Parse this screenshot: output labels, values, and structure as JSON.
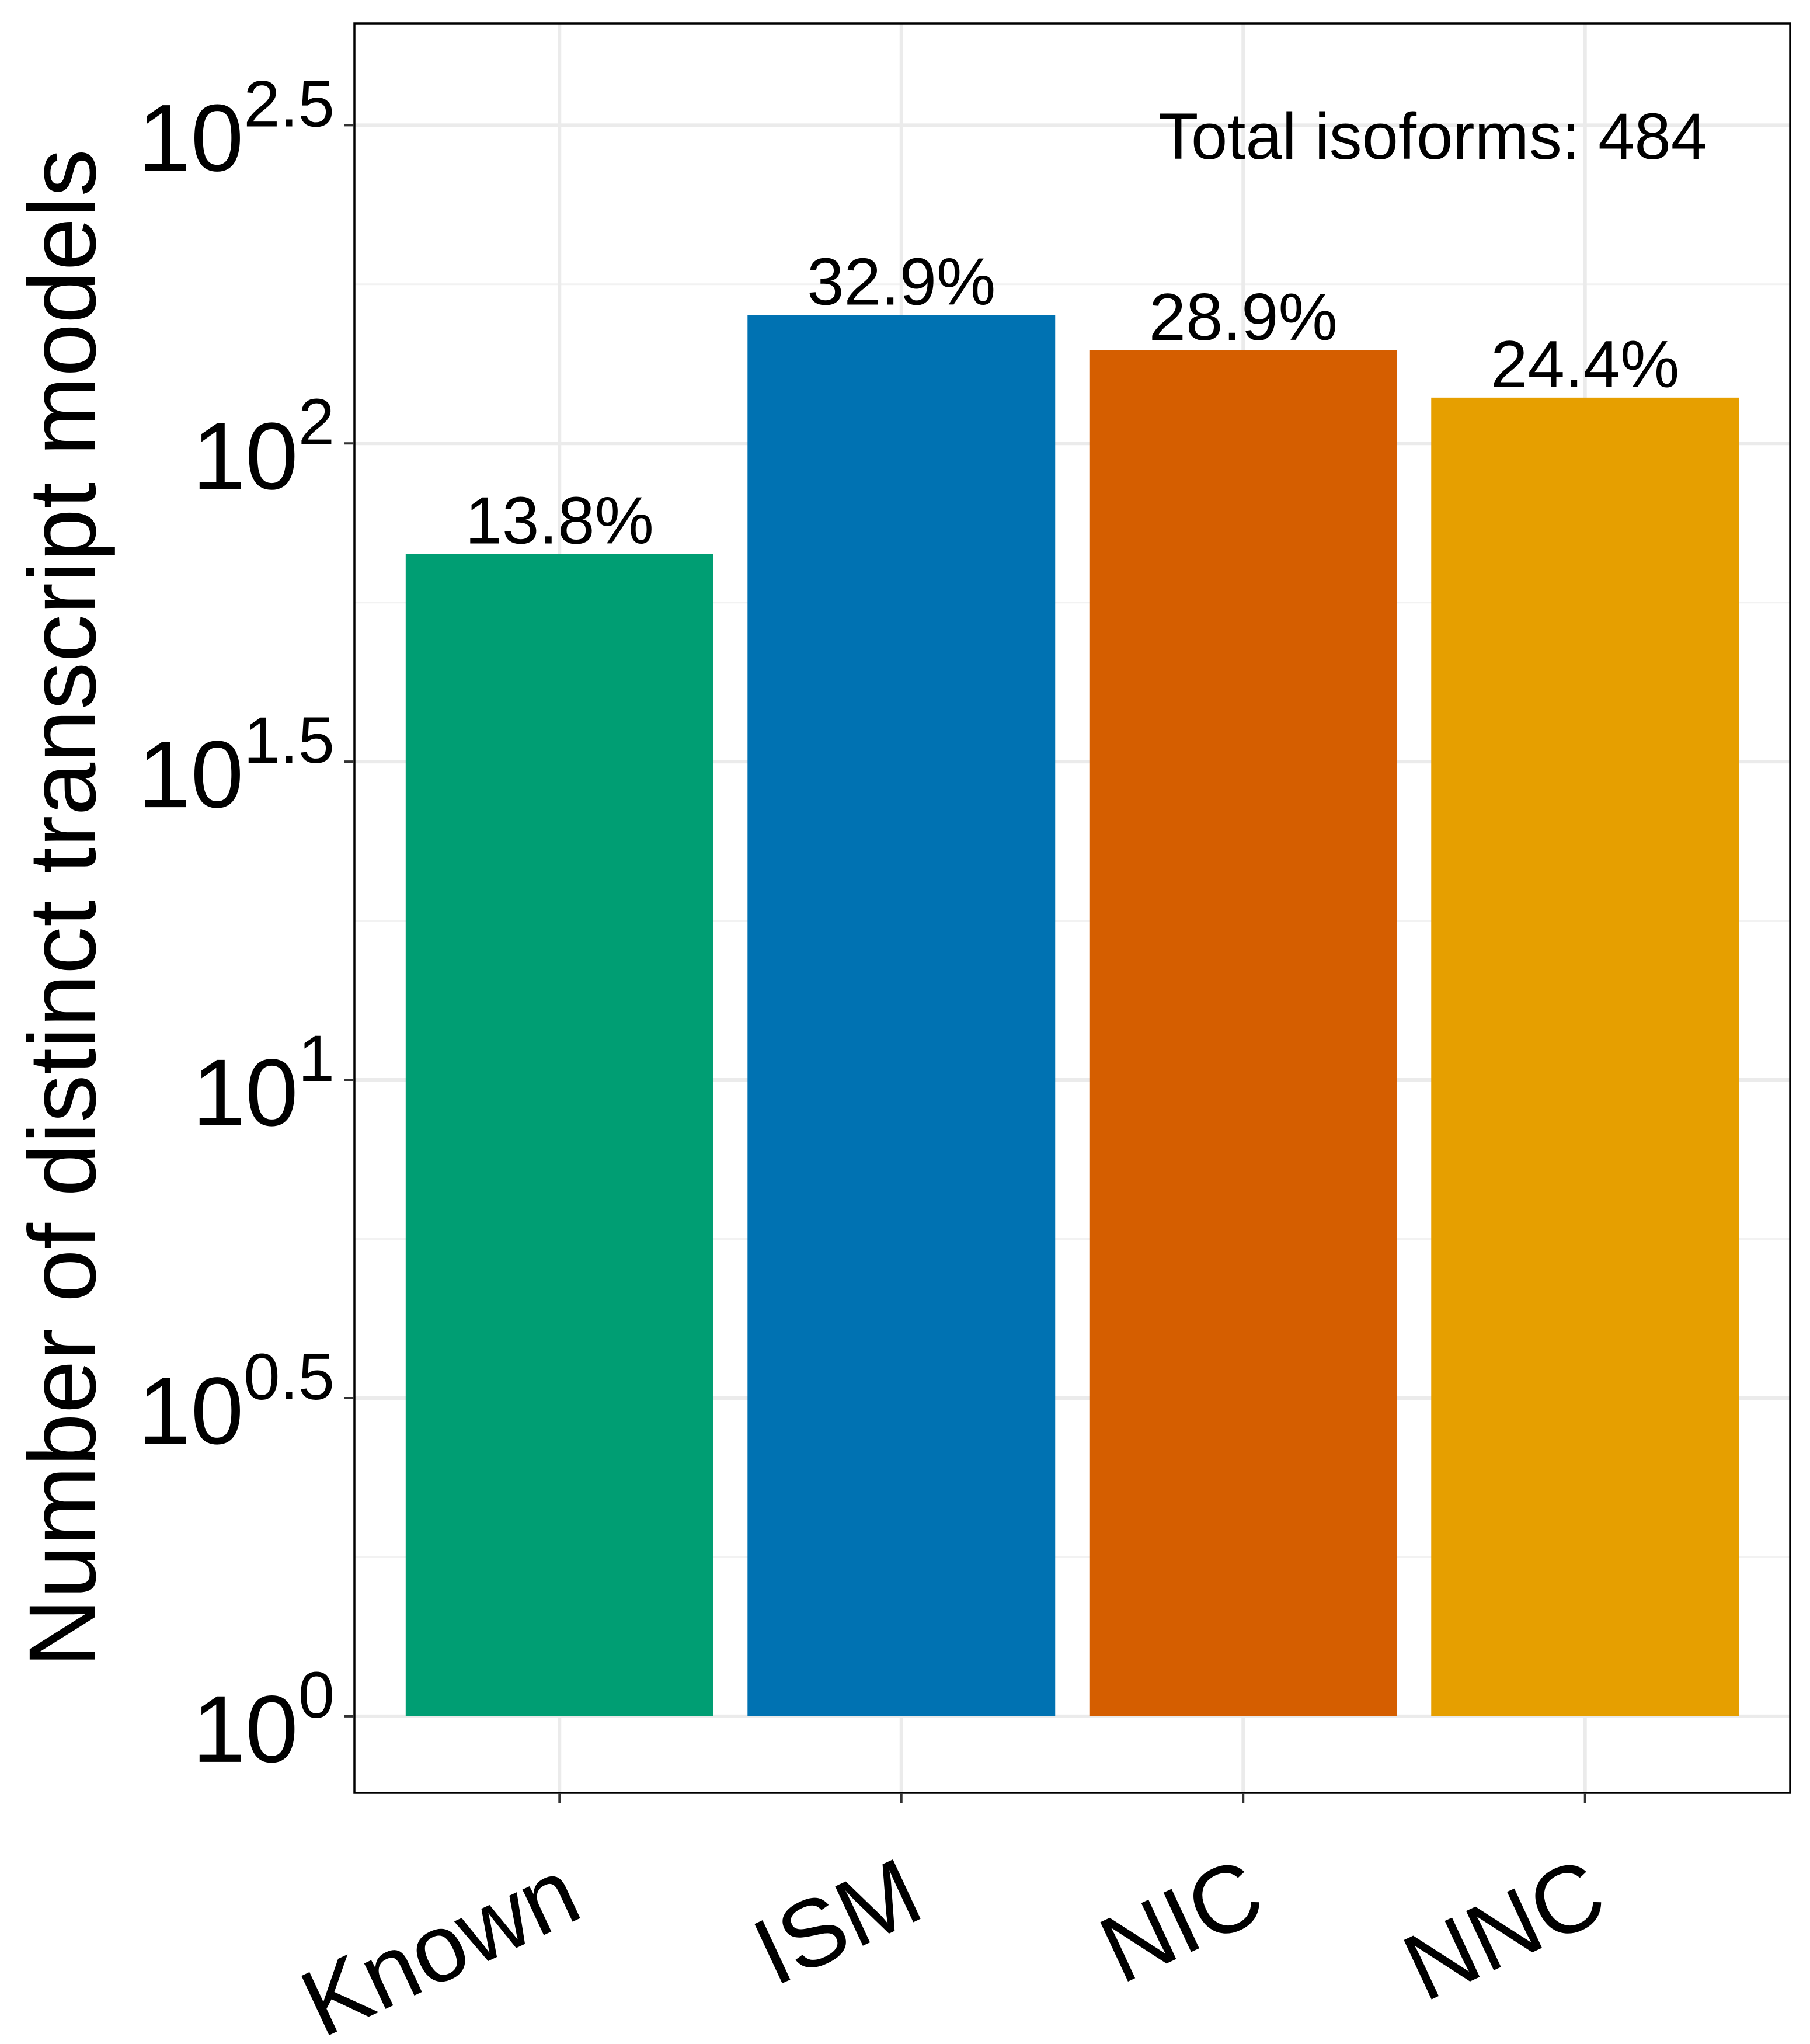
{
  "chart_data": {
    "type": "bar",
    "y_scale": "log10",
    "categories": [
      "Known",
      "ISM",
      "NIC",
      "NNC"
    ],
    "values": [
      67,
      159,
      140,
      118
    ],
    "bar_labels": [
      "13.8%",
      "32.9%",
      "28.9%",
      "24.4%"
    ],
    "colors": [
      "#009E73",
      "#0072B2",
      "#D55E00",
      "#E69F00"
    ],
    "ylabel": "Number of distinct transcript models",
    "xlabel": "",
    "ylim": [
      0.758,
      457
    ],
    "y_ticks": [
      {
        "value": 1,
        "base": "10",
        "exp": "0"
      },
      {
        "value": 3.162,
        "base": "10",
        "exp": "0.5"
      },
      {
        "value": 10,
        "base": "10",
        "exp": "1"
      },
      {
        "value": 31.62,
        "base": "10",
        "exp": "1.5"
      },
      {
        "value": 100,
        "base": "10",
        "exp": "2"
      },
      {
        "value": 316.2,
        "base": "10",
        "exp": "2.5"
      }
    ],
    "annotation": "Total isoforms: 484",
    "grid": true,
    "legend": "none"
  }
}
